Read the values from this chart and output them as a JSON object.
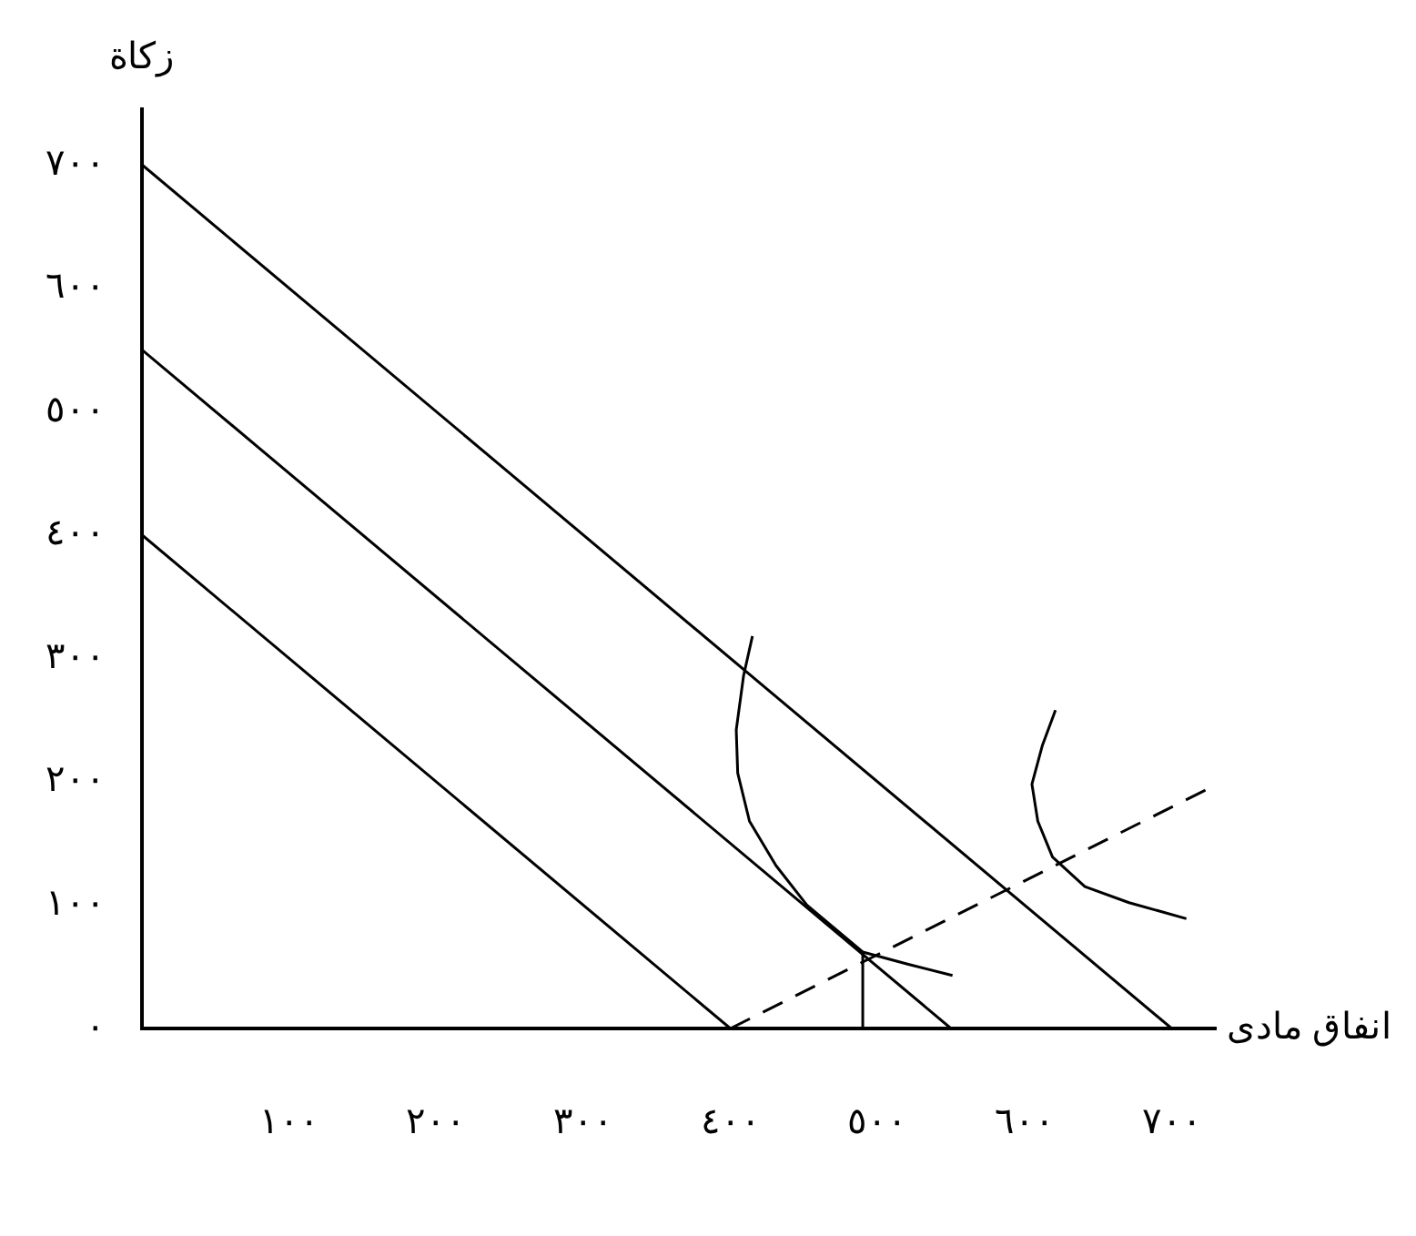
{
  "chart_data": {
    "type": "line",
    "xlabel": "انفاق مادى",
    "ylabel": "زكاة",
    "xlim": [
      0,
      730
    ],
    "ylim": [
      0,
      745
    ],
    "xticks": [
      {
        "value": 100,
        "label": "١٠٠"
      },
      {
        "value": 200,
        "label": "٢٠٠"
      },
      {
        "value": 300,
        "label": "٣٠٠"
      },
      {
        "value": 400,
        "label": "٤٠٠"
      },
      {
        "value": 500,
        "label": "٥٠٠"
      },
      {
        "value": 600,
        "label": "٦٠٠"
      },
      {
        "value": 700,
        "label": "٧٠٠"
      }
    ],
    "yticks": [
      {
        "value": 0,
        "label": "٠"
      },
      {
        "value": 100,
        "label": "١٠٠"
      },
      {
        "value": 200,
        "label": "٢٠٠"
      },
      {
        "value": 300,
        "label": "٣٠٠"
      },
      {
        "value": 400,
        "label": "٤٠٠"
      },
      {
        "value": 500,
        "label": "٥٠٠"
      },
      {
        "value": 600,
        "label": "٦٠٠"
      },
      {
        "value": 700,
        "label": "٧٠٠"
      }
    ],
    "marker": "none",
    "legend": false,
    "series": [
      {
        "color": "#000000",
        "x": [
          0,
          400
        ],
        "values": [
          400,
          0
        ]
      },
      {
        "color": "#000000",
        "x": [
          0,
          550
        ],
        "values": [
          550,
          0
        ]
      },
      {
        "color": "#000000",
        "x": [
          0,
          700
        ],
        "values": [
          700,
          0
        ]
      },
      {
        "color": "#000000",
        "x": [
          415,
          409,
          404,
          405,
          413,
          431,
          452,
          490,
          521,
          551
        ],
        "values": [
          318,
          286,
          242,
          207,
          168,
          132,
          100,
          62,
          52,
          43
        ]
      },
      {
        "color": "#000000",
        "x": [
          621,
          612,
          605,
          609,
          619,
          641,
          671,
          710
        ],
        "values": [
          258,
          229,
          198,
          168,
          139,
          115,
          102,
          89
        ]
      },
      {
        "color": "#000000",
        "x": [
          400,
          726
        ],
        "values": [
          0,
          195
        ],
        "line_style": "dashed"
      },
      {
        "color": "#000000",
        "x": [
          490,
          490
        ],
        "values": [
          0,
          62
        ]
      }
    ]
  }
}
